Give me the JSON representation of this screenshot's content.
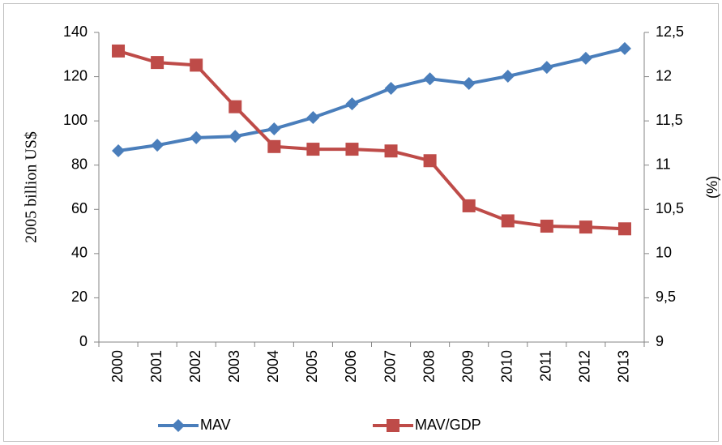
{
  "chart_data": {
    "type": "line",
    "categories": [
      "2000",
      "2001",
      "2002",
      "2003",
      "2004",
      "2005",
      "2006",
      "2007",
      "2008",
      "2009",
      "2010",
      "2011",
      "2012",
      "2013"
    ],
    "series": [
      {
        "name": "MAV",
        "color": "#4a7ebb",
        "marker": "diamond",
        "values": [
          86.5,
          89,
          92.4,
          93,
          96.4,
          101.5,
          107.7,
          114.7,
          119,
          116.9,
          120.2,
          124.2,
          128.3,
          132.7
        ]
      },
      {
        "name": "MAV/GDP",
        "color": "#be4b48",
        "marker": "square",
        "axis": "y2",
        "values": [
          12.29,
          12.16,
          12.13,
          11.66,
          11.21,
          11.18,
          11.18,
          11.16,
          11.05,
          10.54,
          10.37,
          10.31,
          10.3,
          10.28
        ]
      }
    ],
    "ylabel": "2005 billion US$",
    "y2label": "(%)",
    "ylim": [
      0,
      140
    ],
    "yticks": [
      0,
      20,
      40,
      60,
      80,
      100,
      120,
      140
    ],
    "y2lim": [
      9,
      12.5
    ],
    "y2ticks": [
      9,
      {
        "value": 9.5,
        "label": "9,5"
      },
      10,
      {
        "value": 10.5,
        "label": "10,5"
      },
      11,
      {
        "value": 11.5,
        "label": "11,5"
      },
      12,
      {
        "value": 12.5,
        "label": "12,5"
      }
    ],
    "grid": false,
    "legend": "bottom"
  }
}
